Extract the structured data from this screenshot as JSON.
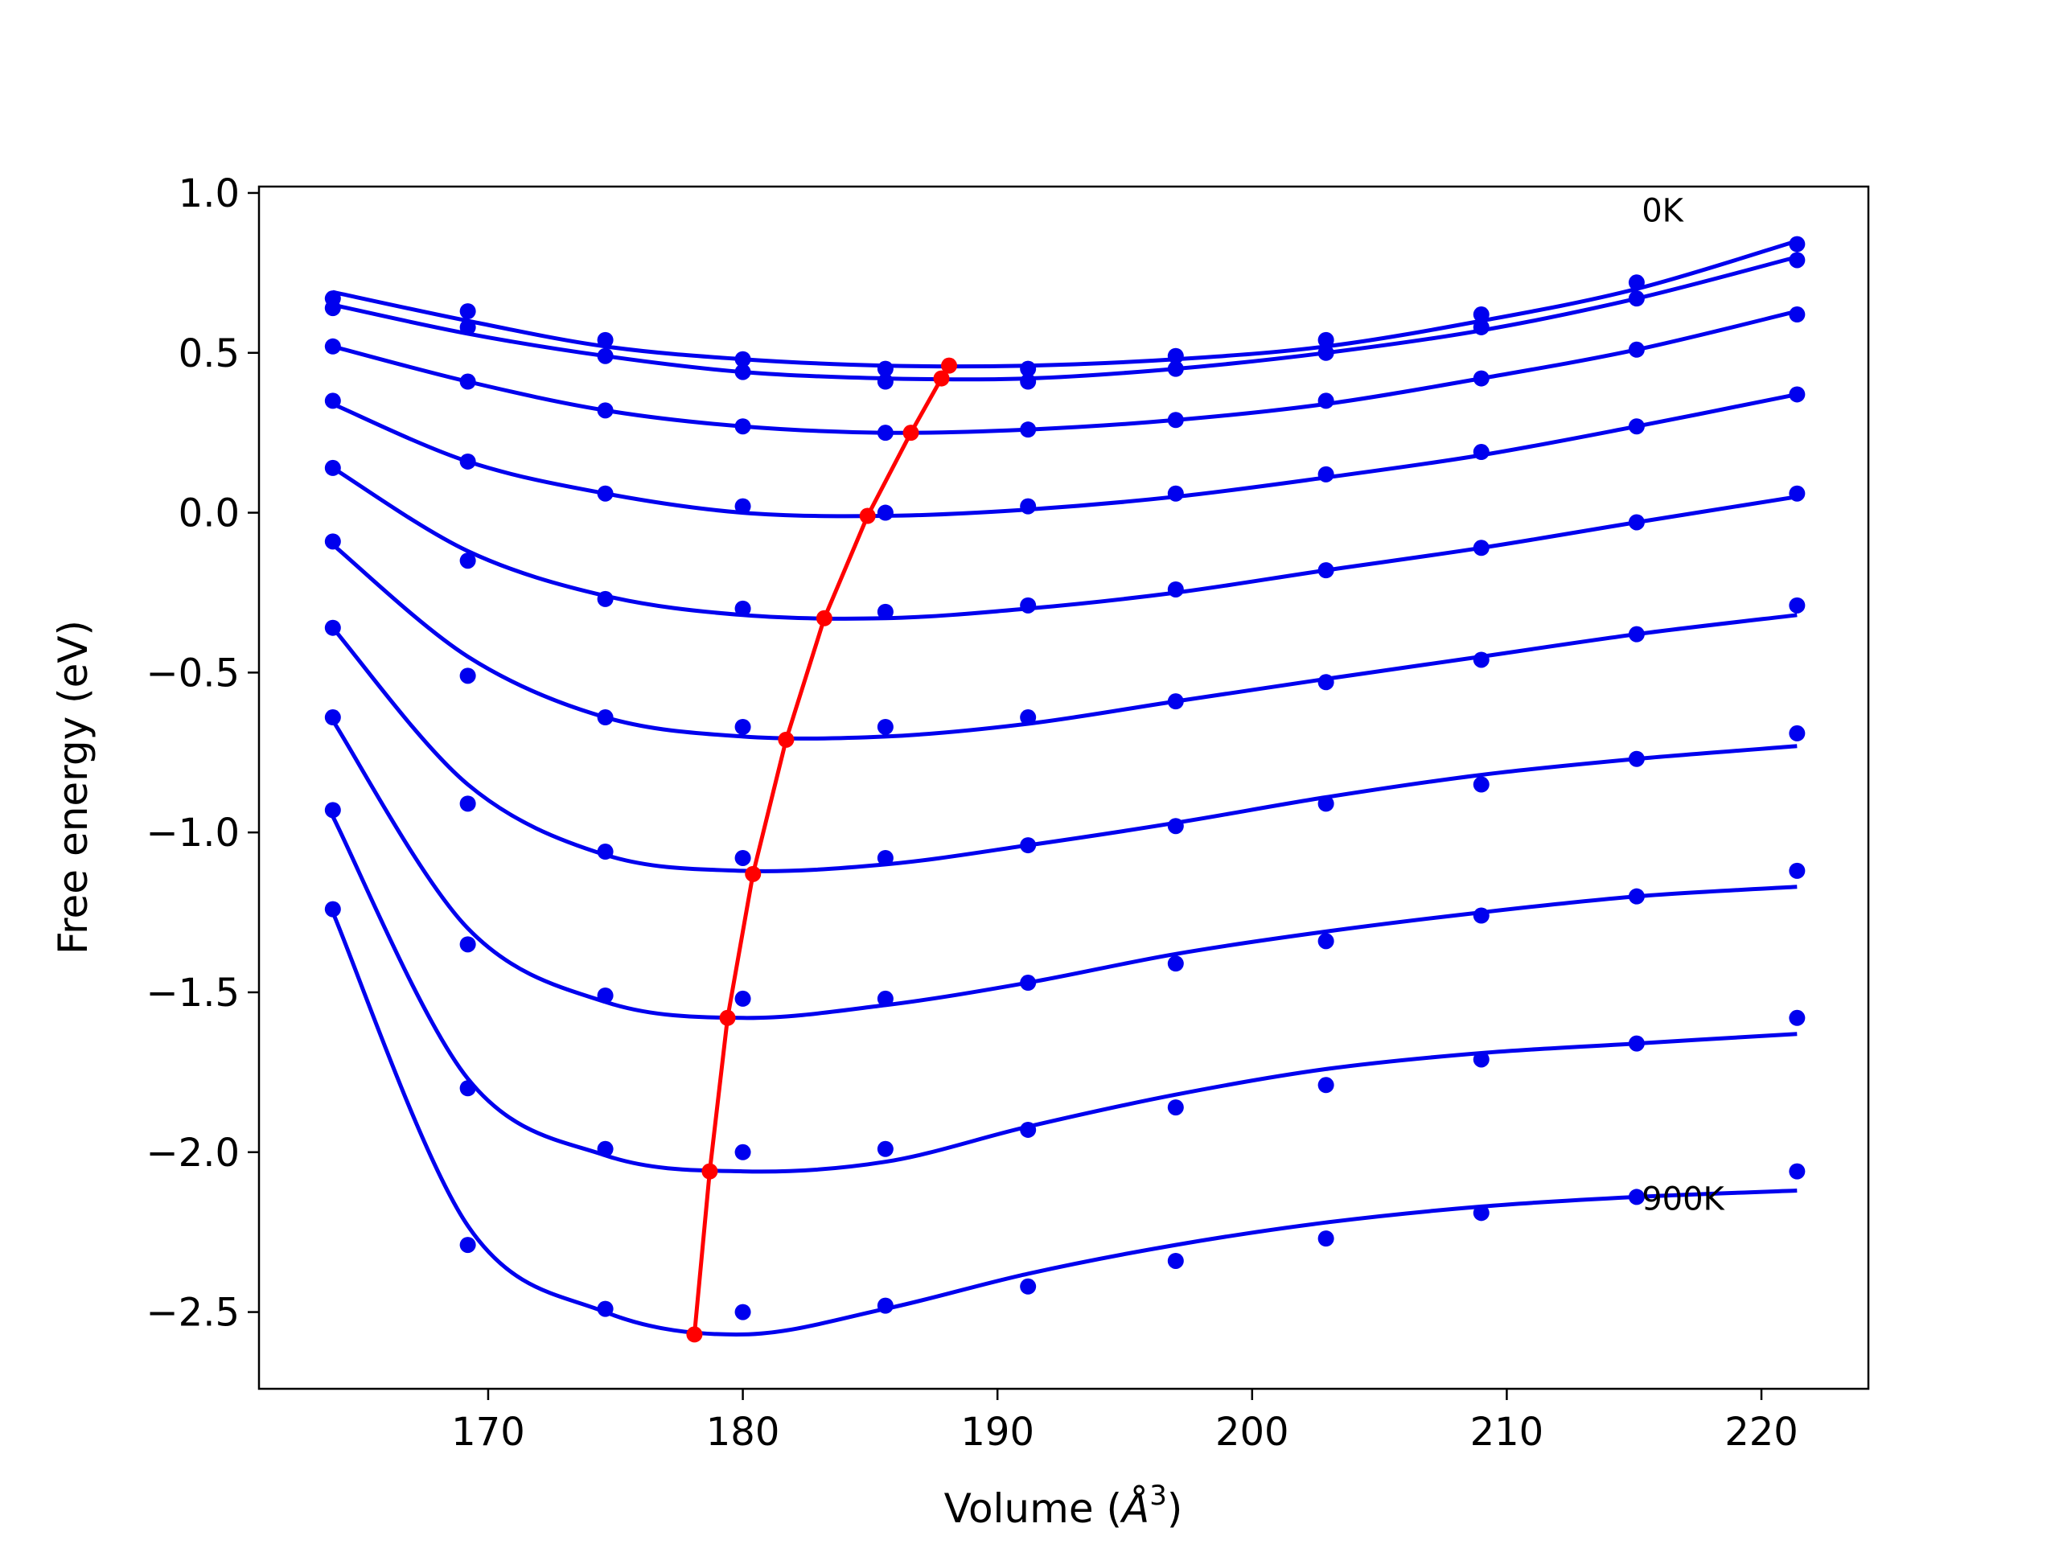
{
  "chart_data": {
    "type": "line",
    "xlabel_main": "Volume (",
    "xlabel_unit": "Å",
    "xlabel_exp": "3",
    "xlabel_close": ")",
    "ylabel": "Free energy (eV)",
    "xlim": [
      161.0,
      224.2
    ],
    "ylim": [
      -2.74,
      1.02
    ],
    "xticks": [
      170,
      180,
      190,
      200,
      210,
      220
    ],
    "yticks": [
      1.0,
      0.5,
      0.0,
      -0.5,
      -1.0,
      -1.5,
      -2.0,
      -2.5
    ],
    "ytick_labels": [
      "1.0",
      "0.5",
      "0.0",
      "−0.5",
      "−1.0",
      "−1.5",
      "−2.0",
      "−2.5"
    ],
    "annotations": [
      {
        "text": "0K",
        "x": 215.3,
        "y": 0.91
      },
      {
        "text": "900K",
        "x": 215.3,
        "y": -2.18
      }
    ],
    "colors": {
      "data": "#0000ee",
      "minimum": "#ff0000"
    },
    "volumes": [
      163.9,
      169.2,
      174.6,
      180.0,
      185.6,
      191.2,
      197.0,
      202.9,
      209.0,
      215.1,
      221.4
    ],
    "series": [
      {
        "points": [
          0.67,
          0.63,
          0.54,
          0.48,
          0.45,
          0.45,
          0.49,
          0.54,
          0.62,
          0.72,
          0.84
        ],
        "fit": [
          0.69,
          0.6,
          0.52,
          0.48,
          0.46,
          0.46,
          0.48,
          0.52,
          0.6,
          0.7,
          0.85
        ]
      },
      {
        "points": [
          0.64,
          0.58,
          0.49,
          0.44,
          0.41,
          0.41,
          0.45,
          0.5,
          0.58,
          0.67,
          0.79
        ],
        "fit": [
          0.65,
          0.56,
          0.49,
          0.44,
          0.42,
          0.42,
          0.45,
          0.5,
          0.57,
          0.67,
          0.8
        ]
      },
      {
        "points": [
          0.52,
          0.41,
          0.32,
          0.27,
          0.25,
          0.26,
          0.29,
          0.35,
          0.42,
          0.51,
          0.62
        ],
        "fit": [
          0.52,
          0.41,
          0.32,
          0.27,
          0.25,
          0.26,
          0.29,
          0.34,
          0.42,
          0.51,
          0.63
        ]
      },
      {
        "points": [
          0.35,
          0.16,
          0.06,
          0.02,
          0.0,
          0.02,
          0.06,
          0.12,
          0.19,
          0.27,
          0.37
        ],
        "fit": [
          0.34,
          0.16,
          0.06,
          0.0,
          -0.01,
          0.01,
          0.05,
          0.11,
          0.18,
          0.27,
          0.37
        ]
      },
      {
        "points": [
          0.14,
          -0.15,
          -0.27,
          -0.3,
          -0.31,
          -0.29,
          -0.24,
          -0.18,
          -0.11,
          -0.03,
          0.06
        ],
        "fit": [
          0.14,
          -0.12,
          -0.26,
          -0.32,
          -0.33,
          -0.3,
          -0.25,
          -0.18,
          -0.11,
          -0.03,
          0.05
        ]
      },
      {
        "points": [
          -0.09,
          -0.51,
          -0.64,
          -0.67,
          -0.67,
          -0.64,
          -0.59,
          -0.53,
          -0.46,
          -0.38,
          -0.29
        ],
        "fit": [
          -0.1,
          -0.45,
          -0.64,
          -0.7,
          -0.7,
          -0.66,
          -0.59,
          -0.52,
          -0.45,
          -0.38,
          -0.32
        ]
      },
      {
        "points": [
          -0.36,
          -0.91,
          -1.06,
          -1.08,
          -1.08,
          -1.04,
          -0.98,
          -0.91,
          -0.85,
          -0.77,
          -0.69
        ],
        "fit": [
          -0.36,
          -0.85,
          -1.07,
          -1.12,
          -1.1,
          -1.04,
          -0.97,
          -0.89,
          -0.82,
          -0.77,
          -0.73
        ]
      },
      {
        "points": [
          -0.64,
          -1.35,
          -1.51,
          -1.52,
          -1.52,
          -1.47,
          -1.41,
          -1.34,
          -1.26,
          -1.2,
          -1.12
        ],
        "fit": [
          -0.65,
          -1.3,
          -1.53,
          -1.58,
          -1.54,
          -1.47,
          -1.38,
          -1.31,
          -1.25,
          -1.2,
          -1.17
        ]
      },
      {
        "points": [
          -0.93,
          -1.8,
          -1.99,
          -2.0,
          -1.99,
          -1.93,
          -1.86,
          -1.79,
          -1.71,
          -1.66,
          -1.58
        ],
        "fit": [
          -0.95,
          -1.77,
          -2.01,
          -2.06,
          -2.03,
          -1.92,
          -1.82,
          -1.74,
          -1.69,
          -1.66,
          -1.63
        ]
      },
      {
        "points": [
          -1.24,
          -2.29,
          -2.49,
          -2.5,
          -2.48,
          -2.42,
          -2.34,
          -2.27,
          -2.19,
          -2.14,
          -2.06
        ],
        "fit": [
          -1.25,
          -2.23,
          -2.5,
          -2.57,
          -2.49,
          -2.38,
          -2.29,
          -2.22,
          -2.17,
          -2.14,
          -2.12
        ]
      }
    ],
    "minimum_line": {
      "x": [
        188.1,
        187.8,
        186.6,
        184.9,
        183.2,
        181.7,
        180.4,
        179.4,
        178.7,
        178.1
      ],
      "y": [
        0.46,
        0.42,
        0.25,
        -0.01,
        -0.33,
        -0.71,
        -1.13,
        -1.58,
        -2.06,
        -2.57
      ]
    }
  }
}
